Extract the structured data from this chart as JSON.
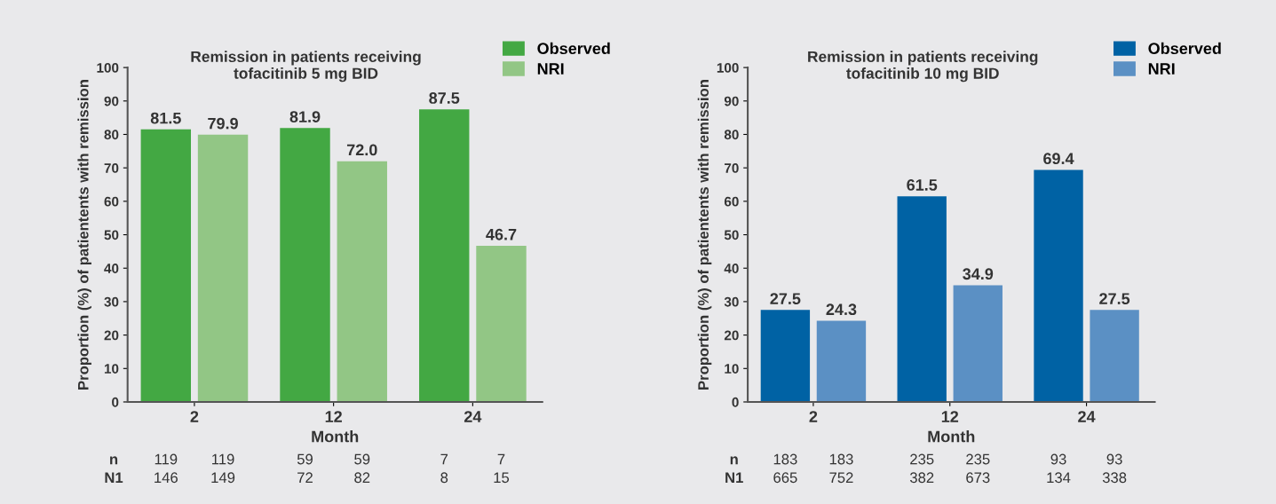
{
  "chart_data": [
    {
      "type": "bar",
      "title": "Remission in patients receiving\ntofacitinib 5 mg BID",
      "xlabel": "Month",
      "ylabel": "Proportion (%) of patientents with remission",
      "categories": [
        "2",
        "12",
        "24"
      ],
      "series": [
        {
          "name": "Observed",
          "color": "#43a843",
          "values": [
            81.5,
            81.9,
            87.5
          ]
        },
        {
          "name": "NRI",
          "color": "#92c685",
          "values": [
            79.9,
            72.0,
            46.7
          ]
        }
      ],
      "value_labels": [
        [
          "81.5",
          "81.9",
          "87.5"
        ],
        [
          "79.9",
          "72.0",
          "46.7"
        ]
      ],
      "ylim": [
        0,
        100
      ],
      "yticks": [
        0,
        10,
        20,
        30,
        40,
        50,
        60,
        70,
        80,
        90,
        100
      ],
      "grid": false,
      "legend": "top right",
      "annotations": [
        "n",
        "N1",
        "119",
        "119",
        "59",
        "59",
        "7",
        "7",
        "146",
        "149",
        "72",
        "82",
        "8",
        "15"
      ]
    },
    {
      "type": "bar",
      "title": "Remission in patients receiving\ntofacitinib 10 mg BID",
      "xlabel": "Month",
      "ylabel": "Proportion (%) of patientents with remission",
      "categories": [
        "2",
        "12",
        "24"
      ],
      "series": [
        {
          "name": "Observed",
          "color": "#0062a4",
          "values": [
            27.5,
            61.5,
            69.4
          ]
        },
        {
          "name": "NRI",
          "color": "#5b90c4",
          "values": [
            24.3,
            34.9,
            27.5
          ]
        }
      ],
      "value_labels": [
        [
          "27.5",
          "61.5",
          "69.4"
        ],
        [
          "24.3",
          "34.9",
          "27.5"
        ]
      ],
      "ylim": [
        0,
        100
      ],
      "yticks": [
        0,
        10,
        20,
        30,
        40,
        50,
        60,
        70,
        80,
        90,
        100
      ],
      "grid": false,
      "legend": "top right",
      "annotations": [
        "n",
        "N1",
        "183",
        "183",
        "235",
        "235",
        "93",
        "93",
        "665",
        "752",
        "382",
        "673",
        "134",
        "338"
      ]
    }
  ]
}
